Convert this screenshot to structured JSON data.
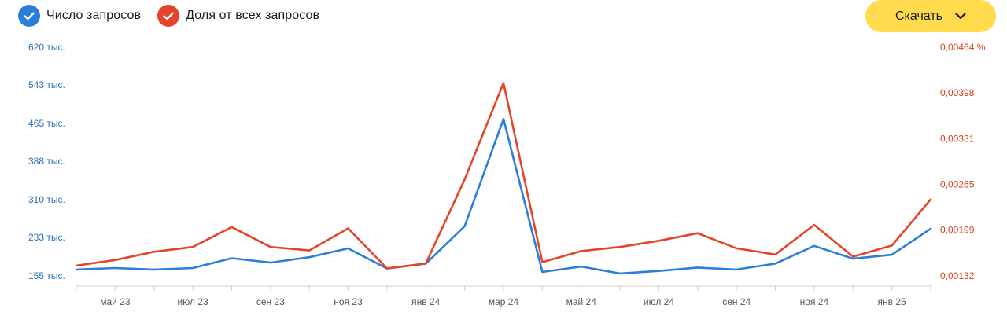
{
  "legend": {
    "series1_label": "Число запросов",
    "series2_label": "Доля от всех запросов"
  },
  "download": {
    "label": "Скачать",
    "icon": "chevron-down-icon"
  },
  "colors": {
    "series1": "#2c7fd6",
    "series2": "#e3452a",
    "button": "#ffdb4d"
  },
  "chart_data": {
    "type": "line",
    "x": [
      "апр 23",
      "май 23",
      "июн 23",
      "июл 23",
      "авг 23",
      "сен 23",
      "окт 23",
      "ноя 23",
      "дек 23",
      "янв 24",
      "фев 24",
      "мар 24",
      "апр 24",
      "май 24",
      "июн 24",
      "июл 24",
      "авг 24",
      "сен 24",
      "окт 24",
      "ноя 24",
      "дек 24",
      "янв 25",
      "фев 25"
    ],
    "x_tick_labels": [
      "май 23",
      "июл 23",
      "сен 23",
      "ноя 23",
      "янв 24",
      "мар 24",
      "май 24",
      "июл 24",
      "сен 24",
      "ноя 24",
      "янв 25"
    ],
    "series": [
      {
        "name": "Число запросов",
        "axis": "left",
        "values": [
          168000,
          171000,
          168000,
          171000,
          191000,
          182000,
          193000,
          211000,
          170000,
          180000,
          256000,
          474000,
          163000,
          174000,
          160000,
          165000,
          172000,
          168000,
          180000,
          216000,
          190000,
          198000,
          251000
        ]
      },
      {
        "name": "Доля от всех запросов",
        "axis": "right",
        "values": [
          0.00147,
          0.00155,
          0.00167,
          0.00174,
          0.00203,
          0.00174,
          0.00169,
          0.00201,
          0.00143,
          0.0015,
          0.00272,
          0.00412,
          0.00152,
          0.00168,
          0.00174,
          0.00183,
          0.00194,
          0.00172,
          0.00163,
          0.00206,
          0.0016,
          0.00176,
          0.00243
        ]
      }
    ],
    "y_left": {
      "ticks": [
        155,
        233,
        310,
        388,
        465,
        543,
        620
      ],
      "tick_labels": [
        "155 тыс.",
        "233 тыс.",
        "310 тыс.",
        "388 тыс.",
        "465 тыс.",
        "543 тыс.",
        "620 тыс."
      ],
      "range": [
        155000,
        620000
      ]
    },
    "y_right": {
      "ticks": [
        0.00132,
        0.00199,
        0.00265,
        0.00331,
        0.00398,
        0.00464
      ],
      "tick_labels": [
        "0,00132",
        "0,00199",
        "0,00265",
        "0,00331",
        "0,00398",
        "0,00464 %"
      ],
      "range": [
        0.00132,
        0.00464
      ]
    },
    "grid": false
  }
}
